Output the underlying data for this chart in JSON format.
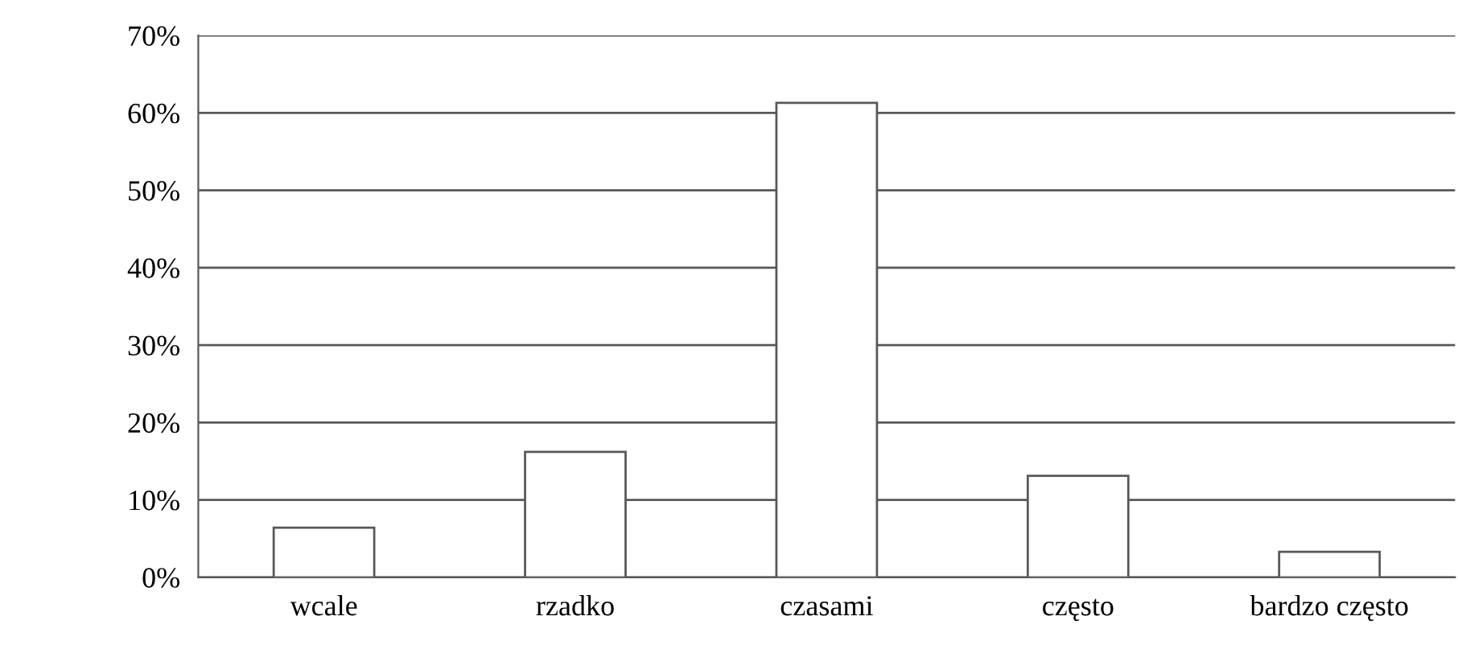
{
  "chart_data": {
    "type": "bar",
    "categories": [
      "wcale",
      "rzadko",
      "czasami",
      "często",
      "bardzo często"
    ],
    "values": [
      6.4,
      16.2,
      61.3,
      13.1,
      3.3
    ],
    "color": "#ffffff",
    "ylim": [
      0,
      70
    ],
    "yticks": [
      {
        "value": 0,
        "label": "0%"
      },
      {
        "value": 10,
        "label": "10%"
      },
      {
        "value": 20,
        "label": "20%"
      },
      {
        "value": 30,
        "label": "30%"
      },
      {
        "value": 40,
        "label": "40%"
      },
      {
        "value": 50,
        "label": "50%"
      },
      {
        "value": 60,
        "label": "60%"
      },
      {
        "value": 70,
        "label": "70%"
      }
    ],
    "grid": "y"
  }
}
